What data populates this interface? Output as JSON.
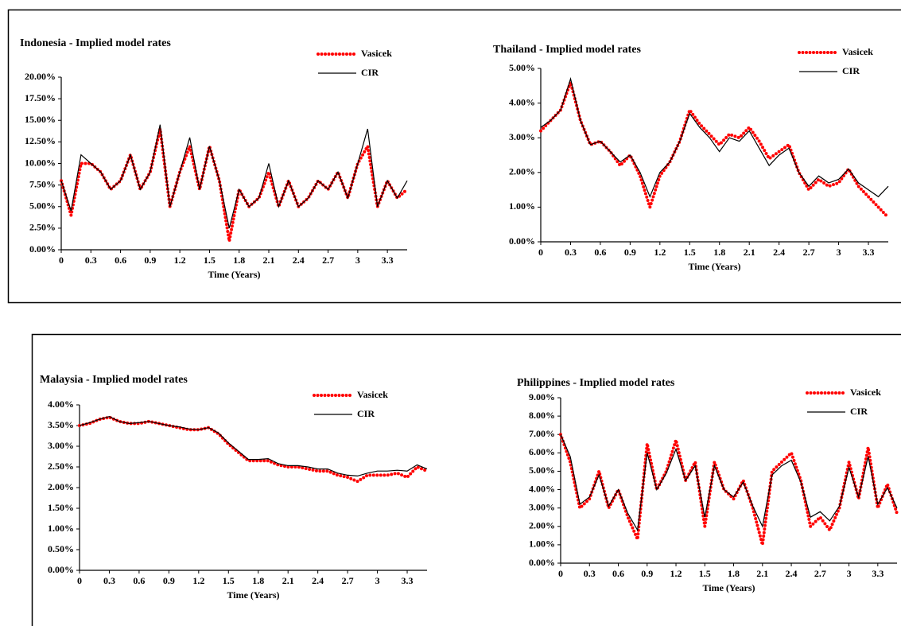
{
  "chart_data": [
    {
      "type": "line",
      "title": "Indonesia - Implied model rates",
      "xlabel": "Time (Years)",
      "x": [
        0,
        0.1,
        0.2,
        0.3,
        0.4,
        0.5,
        0.6,
        0.7,
        0.8,
        0.9,
        1.0,
        1.1,
        1.2,
        1.3,
        1.4,
        1.5,
        1.6,
        1.7,
        1.8,
        1.9,
        2.0,
        2.1,
        2.2,
        2.3,
        2.4,
        2.5,
        2.6,
        2.7,
        2.8,
        2.9,
        3.0,
        3.1,
        3.2,
        3.3,
        3.4,
        3.5
      ],
      "series": [
        {
          "name": "Vasicek",
          "color": "#ff0000",
          "values": [
            8,
            4,
            10,
            10,
            9,
            7,
            8,
            11,
            7,
            9,
            14,
            5,
            9,
            12,
            7,
            12,
            8,
            1,
            7,
            5,
            6,
            9,
            5,
            8,
            5,
            6,
            8,
            7,
            9,
            6,
            10,
            12,
            5,
            8,
            6,
            7
          ]
        },
        {
          "name": "CIR",
          "color": "#000000",
          "values": [
            8,
            4.5,
            11,
            10,
            9,
            7,
            8,
            11,
            7,
            9,
            14.5,
            5,
            9,
            13,
            7,
            12,
            8,
            2.5,
            7,
            5,
            6,
            10,
            5,
            8,
            5,
            6,
            8,
            7,
            9,
            6,
            10,
            14,
            5,
            8,
            6,
            8
          ]
        }
      ],
      "xlim": [
        0,
        3.5
      ],
      "xticks": [
        0,
        0.3,
        0.6,
        0.9,
        1.2,
        1.5,
        1.8,
        2.1,
        2.4,
        2.7,
        3,
        3.3
      ],
      "ylim": [
        0,
        20
      ],
      "yticks": [
        {
          "value": 0,
          "label": "0.00%"
        },
        {
          "value": 2.5,
          "label": "2.50%"
        },
        {
          "value": 5,
          "label": "5.00%"
        },
        {
          "value": 7.5,
          "label": "7.50%"
        },
        {
          "value": 10,
          "label": "10.00%"
        },
        {
          "value": 12.5,
          "label": "12.50%"
        },
        {
          "value": 15,
          "label": "15.00%"
        },
        {
          "value": 17.5,
          "label": "17.50%"
        },
        {
          "value": 20,
          "label": "20.00%"
        }
      ]
    },
    {
      "type": "line",
      "title": "Thailand  - Implied model rates",
      "xlabel": "Time (Years)",
      "x": [
        0,
        0.1,
        0.2,
        0.3,
        0.4,
        0.5,
        0.6,
        0.7,
        0.8,
        0.9,
        1.0,
        1.1,
        1.2,
        1.3,
        1.4,
        1.5,
        1.6,
        1.7,
        1.8,
        1.9,
        2.0,
        2.1,
        2.2,
        2.3,
        2.4,
        2.5,
        2.6,
        2.7,
        2.8,
        2.9,
        3.0,
        3.1,
        3.2,
        3.3,
        3.4,
        3.5
      ],
      "series": [
        {
          "name": "Vasicek",
          "color": "#ff0000",
          "values": [
            3.2,
            3.5,
            3.8,
            4.6,
            3.5,
            2.8,
            2.9,
            2.6,
            2.2,
            2.5,
            1.9,
            1.0,
            1.9,
            2.3,
            2.9,
            3.8,
            3.4,
            3.1,
            2.8,
            3.1,
            3.0,
            3.3,
            2.9,
            2.4,
            2.6,
            2.8,
            2.0,
            1.5,
            1.8,
            1.6,
            1.7,
            2.1,
            1.6,
            1.3,
            1.0,
            0.7
          ]
        },
        {
          "name": "CIR",
          "color": "#000000",
          "values": [
            3.3,
            3.5,
            3.8,
            4.7,
            3.5,
            2.8,
            2.9,
            2.6,
            2.3,
            2.5,
            2.0,
            1.3,
            2.0,
            2.3,
            2.9,
            3.7,
            3.3,
            3.0,
            2.6,
            3.0,
            2.9,
            3.2,
            2.7,
            2.2,
            2.5,
            2.7,
            2.0,
            1.6,
            1.9,
            1.7,
            1.8,
            2.1,
            1.7,
            1.5,
            1.3,
            1.6
          ]
        }
      ],
      "xlim": [
        0,
        3.5
      ],
      "xticks": [
        0,
        0.3,
        0.6,
        0.9,
        1.2,
        1.5,
        1.8,
        2.1,
        2.4,
        2.7,
        3,
        3.3
      ],
      "ylim": [
        0,
        5
      ],
      "yticks": [
        {
          "value": 0,
          "label": "0.00%"
        },
        {
          "value": 1,
          "label": "1.00%"
        },
        {
          "value": 2,
          "label": "2.00%"
        },
        {
          "value": 3,
          "label": "3.00%"
        },
        {
          "value": 4,
          "label": "4.00%"
        },
        {
          "value": 5,
          "label": "5.00%"
        }
      ]
    },
    {
      "type": "line",
      "title": "Malaysia - Implied model rates",
      "xlabel": "Time (Years)",
      "x": [
        0,
        0.1,
        0.2,
        0.3,
        0.4,
        0.5,
        0.6,
        0.7,
        0.8,
        0.9,
        1.0,
        1.1,
        1.2,
        1.3,
        1.4,
        1.5,
        1.6,
        1.7,
        1.8,
        1.9,
        2.0,
        2.1,
        2.2,
        2.3,
        2.4,
        2.5,
        2.6,
        2.7,
        2.8,
        2.9,
        3.0,
        3.1,
        3.2,
        3.3,
        3.4,
        3.5
      ],
      "series": [
        {
          "name": "Vasicek",
          "color": "#ff0000",
          "values": [
            3.5,
            3.55,
            3.65,
            3.7,
            3.6,
            3.55,
            3.55,
            3.6,
            3.55,
            3.5,
            3.45,
            3.4,
            3.4,
            3.45,
            3.3,
            3.05,
            2.85,
            2.65,
            2.65,
            2.65,
            2.55,
            2.5,
            2.5,
            2.45,
            2.4,
            2.4,
            2.3,
            2.25,
            2.15,
            2.3,
            2.3,
            2.3,
            2.35,
            2.25,
            2.5,
            2.4
          ]
        },
        {
          "name": "CIR",
          "color": "#000000",
          "values": [
            3.5,
            3.57,
            3.65,
            3.72,
            3.6,
            3.55,
            3.57,
            3.6,
            3.55,
            3.5,
            3.47,
            3.42,
            3.4,
            3.45,
            3.32,
            3.08,
            2.88,
            2.68,
            2.68,
            2.7,
            2.58,
            2.53,
            2.53,
            2.5,
            2.45,
            2.45,
            2.35,
            2.3,
            2.28,
            2.35,
            2.4,
            2.4,
            2.42,
            2.4,
            2.55,
            2.45
          ]
        }
      ],
      "xlim": [
        0,
        3.5
      ],
      "xticks": [
        0,
        0.3,
        0.6,
        0.9,
        1.2,
        1.5,
        1.8,
        2.1,
        2.4,
        2.7,
        3,
        3.3
      ],
      "ylim": [
        0,
        4
      ],
      "yticks": [
        {
          "value": 0,
          "label": "0.00%"
        },
        {
          "value": 0.5,
          "label": "0.50%"
        },
        {
          "value": 1,
          "label": "1.00%"
        },
        {
          "value": 1.5,
          "label": "1.50%"
        },
        {
          "value": 2,
          "label": "2.00%"
        },
        {
          "value": 2.5,
          "label": "2.50%"
        },
        {
          "value": 3,
          "label": "3.00%"
        },
        {
          "value": 3.5,
          "label": "3.50%"
        },
        {
          "value": 4,
          "label": "4.00%"
        }
      ]
    },
    {
      "type": "line",
      "title": "Philippines - Implied model rates",
      "xlabel": "Time (Years)",
      "x": [
        0,
        0.1,
        0.2,
        0.3,
        0.4,
        0.5,
        0.6,
        0.7,
        0.8,
        0.9,
        1.0,
        1.1,
        1.2,
        1.3,
        1.4,
        1.5,
        1.6,
        1.7,
        1.8,
        1.9,
        2.0,
        2.1,
        2.2,
        2.3,
        2.4,
        2.5,
        2.6,
        2.7,
        2.8,
        2.9,
        3.0,
        3.1,
        3.2,
        3.3,
        3.4,
        3.5
      ],
      "series": [
        {
          "name": "Vasicek",
          "color": "#ff0000",
          "values": [
            7.0,
            5.5,
            3.0,
            3.5,
            5.0,
            3.0,
            4.0,
            2.5,
            1.3,
            6.5,
            4.0,
            5.0,
            6.7,
            4.5,
            5.5,
            2.0,
            5.5,
            4.0,
            3.5,
            4.5,
            3.0,
            1.0,
            5.0,
            5.5,
            6.0,
            4.5,
            2.0,
            2.5,
            1.8,
            3.0,
            5.5,
            3.5,
            6.3,
            3.0,
            4.3,
            2.7
          ]
        },
        {
          "name": "CIR",
          "color": "#000000",
          "values": [
            7.0,
            5.8,
            3.2,
            3.6,
            4.8,
            3.1,
            4.0,
            2.7,
            1.8,
            6.0,
            4.0,
            4.9,
            6.2,
            4.5,
            5.3,
            2.5,
            5.3,
            4.0,
            3.6,
            4.4,
            3.1,
            2.0,
            4.8,
            5.3,
            5.6,
            4.4,
            2.5,
            2.8,
            2.3,
            3.1,
            5.2,
            3.6,
            5.8,
            3.2,
            4.1,
            3.0
          ]
        }
      ],
      "xlim": [
        0,
        3.5
      ],
      "xticks": [
        0,
        0.3,
        0.6,
        0.9,
        1.2,
        1.5,
        1.8,
        2.1,
        2.4,
        2.7,
        3,
        3.3
      ],
      "ylim": [
        0,
        9
      ],
      "yticks": [
        {
          "value": 0,
          "label": "0.00%"
        },
        {
          "value": 1,
          "label": "1.00%"
        },
        {
          "value": 2,
          "label": "2.00%"
        },
        {
          "value": 3,
          "label": "3.00%"
        },
        {
          "value": 4,
          "label": "4.00%"
        },
        {
          "value": 5,
          "label": "5.00%"
        },
        {
          "value": 6,
          "label": "6.00%"
        },
        {
          "value": 7,
          "label": "7.00%"
        },
        {
          "value": 8,
          "label": "8.00%"
        },
        {
          "value": 9,
          "label": "9.00%"
        }
      ]
    }
  ]
}
